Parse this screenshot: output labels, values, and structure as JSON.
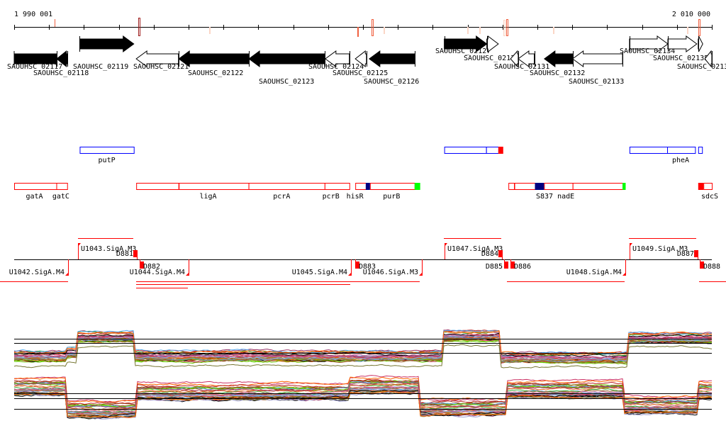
{
  "axis": {
    "start_label": "1 990 001",
    "end_label": "2 010 000",
    "start_bp": 1990001,
    "end_bp": 2010000,
    "tick_step_bp": 1000
  },
  "axis_marks": [
    {
      "bp": 1991150,
      "style": "red"
    },
    {
      "bp": 1993550,
      "style": "box-dark"
    },
    {
      "bp": 1995580,
      "style": "pale"
    },
    {
      "bp": 1999830,
      "style": "pale"
    },
    {
      "bp": 1999830,
      "style": "red-low"
    },
    {
      "bp": 2000250,
      "style": "box-red"
    },
    {
      "bp": 2000580,
      "style": "pale"
    },
    {
      "bp": 2002990,
      "style": "pale"
    },
    {
      "bp": 2003330,
      "style": "pale"
    },
    {
      "bp": 2004030,
      "style": "box-pale"
    },
    {
      "bp": 2004110,
      "style": "box-red"
    },
    {
      "bp": 2005440,
      "style": "pale"
    },
    {
      "bp": 2009290,
      "style": "pale"
    },
    {
      "bp": 2009610,
      "style": "box-red"
    }
  ],
  "genes": [
    {
      "id": "SAOUHSC_02117",
      "start": 1990001,
      "end": 1991220,
      "strand": "-",
      "fill": true,
      "nohead": true
    },
    {
      "id": "SAOUHSC_02118",
      "start": 1991220,
      "end": 1991530,
      "strand": "-",
      "fill": true
    },
    {
      "id": "SAOUHSC_02119",
      "start": 1991880,
      "end": 1993430,
      "strand": "+",
      "fill": true
    },
    {
      "id": "SAOUHSC_02121",
      "start": 1993500,
      "end": 1994710,
      "strand": "-",
      "fill": false
    },
    {
      "id": "SAOUHSC_02122",
      "start": 1994720,
      "end": 1996720,
      "strand": "-",
      "fill": true
    },
    {
      "id": "SAOUHSC_02123",
      "start": 1996730,
      "end": 1998900,
      "strand": "-",
      "fill": true
    },
    {
      "id": "SAOUHSC_02124",
      "start": 1998920,
      "end": 1999610,
      "strand": "-",
      "fill": false
    },
    {
      "id": "SAOUHSC_02125",
      "start": 1999780,
      "end": 2000100,
      "strand": "-",
      "fill": false
    },
    {
      "id": "SAOUHSC_02126",
      "start": 2000180,
      "end": 2001480,
      "strand": "-",
      "fill": true
    },
    {
      "id": "SAOUHSC_02127",
      "start": 2002330,
      "end": 2003550,
      "strand": "+",
      "fill": true
    },
    {
      "id": "SAOUHSC_02129",
      "start": 2003550,
      "end": 2003880,
      "strand": "+",
      "fill": false
    },
    {
      "id": "",
      "start": 2004230,
      "end": 2004450,
      "strand": "-",
      "fill": false
    },
    {
      "id": "SAOUHSC_02131",
      "start": 2004450,
      "end": 2004910,
      "strand": "-",
      "fill": false
    },
    {
      "id": "SAOUHSC_02132",
      "start": 2005200,
      "end": 2006010,
      "strand": "-",
      "fill": true
    },
    {
      "id": "SAOUHSC_02133",
      "start": 2006010,
      "end": 2007440,
      "strand": "-",
      "fill": false
    },
    {
      "id": "SAOUHSC_02134",
      "start": 2007640,
      "end": 2008740,
      "strand": "+",
      "fill": false
    },
    {
      "id": "SAOUHSC_02135",
      "start": 2008740,
      "end": 2009570,
      "strand": "+",
      "fill": false
    },
    {
      "id": "SAOUHSC_0213",
      "start": 2009610,
      "end": 2009740,
      "strand": "+",
      "fill": false
    },
    {
      "id": "",
      "start": 2009800,
      "end": 2010000,
      "strand": "-",
      "fill": false
    }
  ],
  "operons_fwd": [
    {
      "label": "putP",
      "parts": [
        [
          1991880,
          1993430
        ]
      ]
    },
    {
      "label": "",
      "parts": [
        [
          2002330,
          2003530
        ],
        [
          2003530,
          2003880
        ]
      ],
      "red_end": [
        2003880,
        2004020
      ]
    },
    {
      "label": "pheA",
      "parts": [
        [
          2007640,
          2008720
        ],
        [
          2008720,
          2009520
        ],
        [
          2009610,
          2009720
        ]
      ]
    }
  ],
  "operons_rev": [
    {
      "parts": [
        [
          1990001,
          1991210
        ],
        [
          1991210,
          1991520
        ]
      ],
      "labels": [
        {
          "text": "gatA",
          "bp": 1990580
        },
        {
          "text": "gatC",
          "bp": 1991340
        }
      ]
    },
    {
      "parts": [
        [
          1993500,
          1994710
        ],
        [
          1994720,
          1996720
        ],
        [
          1996720,
          1998900
        ],
        [
          1998900,
          1999610
        ]
      ],
      "labels": [
        {
          "text": "ligA",
          "bp": 1995560
        },
        {
          "text": "pcrA",
          "bp": 1997670
        },
        {
          "text": "pcrB",
          "bp": 1999080
        },
        {
          "text": "hisR",
          "bp": 1999770
        }
      ]
    },
    {
      "parts": [
        [
          1999780,
          2000080
        ],
        [
          2000200,
          2001480
        ]
      ],
      "blue": [
        [
          2000080,
          2000200
        ]
      ],
      "green": [
        [
          2001480,
          2001640
        ]
      ],
      "labels": [
        {
          "text": "purB",
          "bp": 2000820
        }
      ]
    },
    {
      "parts": [
        [
          2004170,
          2004330
        ],
        [
          2004340,
          2004930
        ],
        [
          2005190,
          2006010
        ],
        [
          2006010,
          2007440
        ]
      ],
      "blue": [
        [
          2004930,
          2005190
        ]
      ],
      "green": [
        [
          2007440,
          2007530
        ]
      ],
      "labels": [
        {
          "text": "S837 nadE",
          "bp": 2005510
        }
      ]
    },
    {
      "parts": [
        [
          2009760,
          2010000
        ]
      ],
      "redfill": [
        [
          2009610,
          2009760
        ]
      ],
      "labels": [
        {
          "text": "sdcS",
          "bp": 2009940
        }
      ]
    }
  ],
  "promoters_up": [
    {
      "label": "U1043.SigA.M3",
      "bp": 1991840
    },
    {
      "label": "U1047.SigA.M3",
      "bp": 2002330
    },
    {
      "label": "U1049.SigA.M3",
      "bp": 2007640
    }
  ],
  "terminators_up": [
    {
      "label": "D881",
      "bp": 1993420
    },
    {
      "label": "D884",
      "bp": 2003880
    },
    {
      "label": "D887",
      "bp": 2009500
    }
  ],
  "promoters_down": [
    {
      "label": "U1042.SigA.M4",
      "bp": 1991540
    },
    {
      "label": "U1044.SigA.M4",
      "bp": 1995000
    },
    {
      "label": "U1045.SigA.M4",
      "bp": 1999650
    },
    {
      "label": "U1046.SigA.M3",
      "bp": 2001680
    },
    {
      "label": "U1048.SigA.M4",
      "bp": 2007530
    }
  ],
  "terminators_down": [
    {
      "label": "D882",
      "bp": 1993600
    },
    {
      "label": "D883",
      "bp": 1999780
    },
    {
      "label": "D885",
      "bp": 2004050
    },
    {
      "label": "D886",
      "bp": 2004230
    },
    {
      "label": "D888",
      "bp": 2009660
    }
  ]
}
